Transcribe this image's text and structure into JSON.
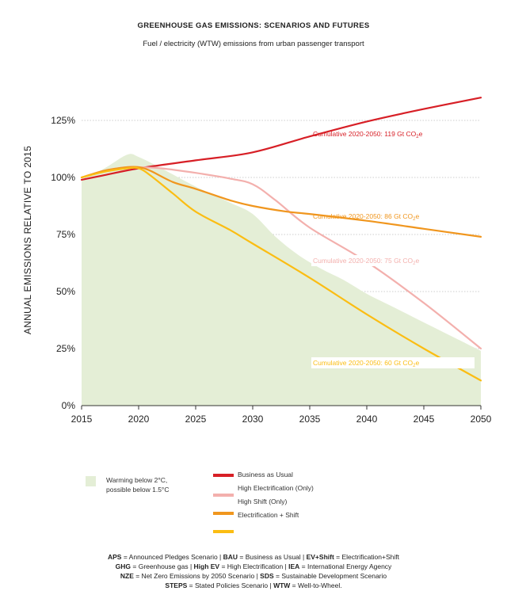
{
  "header": {
    "title": "GREENHOUSE GAS EMISSIONS: SCENARIOS AND FUTURES",
    "subtitle": "Fuel / electricity (WTW) emissions from urban passenger transport"
  },
  "chart_data": {
    "type": "line",
    "title": "GREENHOUSE GAS EMISSIONS: SCENARIOS AND FUTURES",
    "subtitle": "Fuel / electricity (WTW) emissions from urban passenger transport",
    "xlabel": "",
    "ylabel": "ANNUAL EMISSIONS RELATIVE TO 2015",
    "xlim": [
      2015,
      2050
    ],
    "ylim": [
      0,
      130
    ],
    "x_ticks": [
      "2015",
      "2020",
      "2025",
      "2030",
      "2035",
      "2040",
      "2045",
      "2050"
    ],
    "y_ticks": [
      "0%",
      "25%",
      "50%",
      "75%",
      "100%",
      "125%"
    ],
    "y_tick_values": [
      0,
      25,
      50,
      75,
      100,
      125
    ],
    "grid": "horizontal dotted",
    "area": {
      "name": "Warming below 2°C, possible below 1.5°C",
      "color": "#e4eed6",
      "points": [
        [
          2015,
          99
        ],
        [
          2017,
          104
        ],
        [
          2019,
          110
        ],
        [
          2020,
          109
        ],
        [
          2022,
          104
        ],
        [
          2025,
          96
        ],
        [
          2028,
          89
        ],
        [
          2030,
          84
        ],
        [
          2032,
          74
        ],
        [
          2034,
          66
        ],
        [
          2036,
          60
        ],
        [
          2038,
          55
        ],
        [
          2040,
          49
        ],
        [
          2042,
          44
        ],
        [
          2044,
          39
        ],
        [
          2046,
          34
        ],
        [
          2048,
          29
        ],
        [
          2050,
          24
        ]
      ]
    },
    "series": [
      {
        "name": "Business as Usual",
        "color": "#d71f26",
        "x": [
          2015,
          2017,
          2020,
          2025,
          2030,
          2035,
          2040,
          2045,
          2050
        ],
        "y": [
          99,
          101,
          104,
          107.5,
          111,
          118,
          124.5,
          130,
          135
        ]
      },
      {
        "name": "High Electrification (Only)",
        "color": "#f3b0ad",
        "x": [
          2015,
          2017,
          2019,
          2020,
          2022,
          2025,
          2028,
          2030,
          2032,
          2035,
          2040,
          2045,
          2050
        ],
        "y": [
          100,
          103,
          104.5,
          104.5,
          104,
          102,
          99.5,
          97,
          90,
          78,
          63,
          45,
          25
        ]
      },
      {
        "name": "High Shift (Only)",
        "color": "#f0961e",
        "x": [
          2015,
          2017,
          2019,
          2020,
          2021,
          2023,
          2025,
          2028,
          2030,
          2033,
          2035,
          2040,
          2045,
          2050
        ],
        "y": [
          100,
          103,
          104.5,
          104.5,
          103,
          98,
          95,
          90,
          87.5,
          85,
          84,
          81,
          77.5,
          74
        ]
      },
      {
        "name": "Electrification + Shift",
        "color": "#fbbd13",
        "x": [
          2015,
          2017,
          2019,
          2020,
          2021,
          2023,
          2025,
          2028,
          2030,
          2035,
          2040,
          2045,
          2050
        ],
        "y": [
          100,
          102.5,
          104,
          104,
          101,
          93,
          85,
          77,
          71,
          56,
          40,
          25,
          11
        ]
      }
    ],
    "annotations": [
      {
        "text": "Cumulative 2020-2050: 119 Gt CO",
        "sub": "2",
        "suffix": "e",
        "color": "#d71f26"
      },
      {
        "text": "Cumulative 2020-2050: 86 Gt CO",
        "sub": "2",
        "suffix": "e",
        "color": "#f0961e"
      },
      {
        "text": "Cumulative 2020-2050: 75 Gt CO",
        "sub": "2",
        "suffix": "e",
        "color": "#f3b0ad"
      },
      {
        "text": "Cumulative 2020-2050: 60 Gt CO",
        "sub": "2",
        "suffix": "e",
        "color": "#fbbd13"
      }
    ]
  },
  "legend": {
    "area_label_line1": "Warming below 2°C,",
    "area_label_line2": "possible below 1.5°C",
    "items": [
      {
        "label": "Business as Usual",
        "color": "#d71f26"
      },
      {
        "label": "High Electrification (Only)",
        "color": "#f3b0ad"
      },
      {
        "label": "High Shift (Only)",
        "color": "#f0961e"
      },
      {
        "label": "Electrification + Shift",
        "color": "#fbbd13"
      }
    ]
  },
  "glossary": {
    "line1": [
      {
        "b": "APS",
        "t": " = Announced Pledges Scenario | "
      },
      {
        "b": "BAU",
        "t": " = Business as Usual | "
      },
      {
        "b": "EV+Shift",
        "t": " = Electrification+Shift"
      }
    ],
    "line2": [
      {
        "b": "GHG",
        "t": " = Greenhouse gas | "
      },
      {
        "b": "High EV",
        "t": " = High Electrification | "
      },
      {
        "b": "IEA",
        "t": " = International Energy Agency"
      }
    ],
    "line3": [
      {
        "b": "NZE",
        "t": " = Net Zero Emissions by 2050 Scenario | "
      },
      {
        "b": "SDS",
        "t": " = Sustainable Development Scenario"
      }
    ],
    "line4": [
      {
        "b": "STEPS",
        "t": " = Stated Policies Scenario | "
      },
      {
        "b": "WTW",
        "t": " = Well-to-Wheel."
      }
    ]
  }
}
